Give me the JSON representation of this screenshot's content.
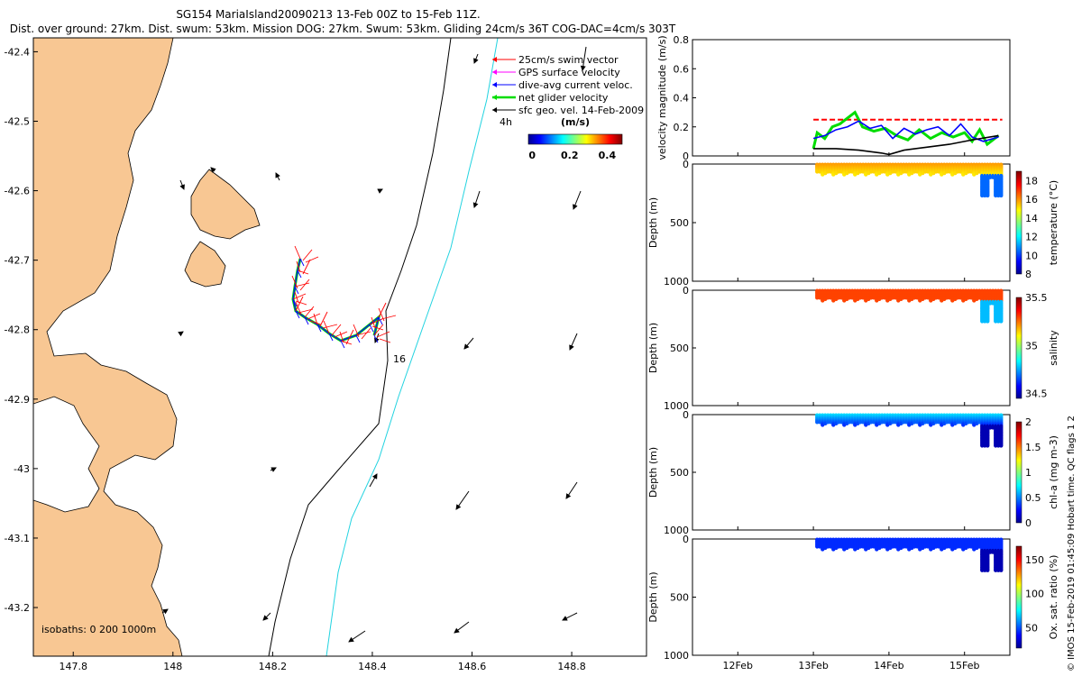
{
  "title_line1": "SG154 MariaIsland20090213 13-Feb 00Z to 15-Feb 11Z.",
  "title_line2": "Dist. over ground: 27km. Dist. swum: 53km. Mission DOG: 27km. Swum: 53km. Gliding 24cm/s 36T COG-DAC=4cm/s 303T",
  "colors": {
    "land": "#f8c793",
    "isobath200": "#000000",
    "isobath1000": "#22d3e0",
    "swim": "#ff0000",
    "gps": "#ff00ff",
    "dac": "#0000ff",
    "net": "#00dd00",
    "sfc": "#000000"
  },
  "map": {
    "x_ticks": [
      "147.8",
      "148",
      "148.2",
      "148.4",
      "148.6",
      "148.8"
    ],
    "y_ticks": [
      "-42.4",
      "-42.5",
      "-42.6",
      "-42.7",
      "-42.8",
      "-42.9",
      "-43",
      "-43.1",
      "-43.2"
    ],
    "xlim": [
      147.72,
      148.95
    ],
    "ylim": [
      -43.27,
      -42.38
    ],
    "legend": [
      "25cm/s swim vector",
      "GPS surface velocity",
      "dive-avg current veloc.",
      "net glider velocity",
      "sfc geo. vel. 14-Feb-2009"
    ],
    "colorbar_title": "(m/s)",
    "colorbar_ticks": [
      "0",
      "0.2",
      "0.4"
    ],
    "label_4h": "4h",
    "label_16": "16",
    "isobaths_label": "isobaths: 0   200   1000m"
  },
  "chart_data": [
    {
      "type": "line",
      "ylabel": "velocity magnitude (m/s)",
      "ylim": [
        0,
        0.8
      ],
      "y_ticks": [
        "0",
        "0.2",
        "0.4",
        "0.6",
        "0.8"
      ],
      "xlim": [
        11.4,
        15.6
      ],
      "series": [
        {
          "name": "target",
          "color": "#ff0000",
          "x": [
            13.0,
            15.5
          ],
          "y": [
            0.25,
            0.25
          ]
        },
        {
          "name": "net glider velocity",
          "color": "#00dd00",
          "x": [
            13.0,
            13.05,
            13.15,
            13.25,
            13.35,
            13.45,
            13.55,
            13.65,
            13.8,
            13.95,
            14.1,
            14.25,
            14.4,
            14.55,
            14.7,
            14.85,
            15.0,
            15.1,
            15.2,
            15.3,
            15.45
          ],
          "y": [
            0.05,
            0.16,
            0.12,
            0.2,
            0.22,
            0.26,
            0.3,
            0.2,
            0.17,
            0.19,
            0.14,
            0.11,
            0.18,
            0.12,
            0.16,
            0.13,
            0.16,
            0.1,
            0.18,
            0.08,
            0.14
          ]
        },
        {
          "name": "dive-avg current veloc.",
          "color": "#0000ff",
          "x": [
            13.0,
            13.15,
            13.3,
            13.45,
            13.6,
            13.75,
            13.9,
            14.05,
            14.2,
            14.35,
            14.5,
            14.65,
            14.8,
            14.95,
            15.1,
            15.25,
            15.45
          ],
          "y": [
            0.12,
            0.14,
            0.18,
            0.2,
            0.24,
            0.19,
            0.21,
            0.12,
            0.19,
            0.15,
            0.18,
            0.2,
            0.14,
            0.22,
            0.13,
            0.1,
            0.13
          ]
        },
        {
          "name": "sfc geo. vel.",
          "color": "#000000",
          "x": [
            13.0,
            13.3,
            13.6,
            13.9,
            14.0,
            14.2,
            14.5,
            14.8,
            15.1,
            15.45
          ],
          "y": [
            0.05,
            0.05,
            0.04,
            0.02,
            0.01,
            0.04,
            0.06,
            0.08,
            0.11,
            0.14
          ]
        }
      ]
    },
    {
      "type": "heatmap",
      "ylabel": "Depth (m)",
      "colorbar_label": "temperature (°C)",
      "colorbar_ticks": [
        "8",
        "10",
        "12",
        "14",
        "16",
        "18"
      ],
      "clim": [
        8,
        19
      ],
      "y_ticks": [
        "0",
        "500",
        "1000"
      ],
      "typical": 16
    },
    {
      "type": "heatmap",
      "ylabel": "Depth (m)",
      "colorbar_label": "salinity",
      "colorbar_ticks": [
        "34.5",
        "35",
        "35.5"
      ],
      "clim": [
        34.45,
        35.5
      ],
      "y_ticks": [
        "0",
        "500",
        "1000"
      ],
      "typical": 35.3
    },
    {
      "type": "heatmap",
      "ylabel": "Depth (m)",
      "colorbar_label": "chl-a (mg m-3)",
      "colorbar_ticks": [
        "0",
        "0.5",
        "1",
        "1.5",
        "2"
      ],
      "clim": [
        0,
        2
      ],
      "y_ticks": [
        "0",
        "500",
        "1000"
      ],
      "typical": 0.7
    },
    {
      "type": "heatmap",
      "ylabel": "Depth (m)",
      "colorbar_label": "Ox. sat. ratio (%)",
      "colorbar_ticks": [
        "50",
        "100",
        "150"
      ],
      "clim": [
        20,
        170
      ],
      "y_ticks": [
        "0",
        "500",
        "1000"
      ],
      "typical": 45
    }
  ],
  "time_ticks": [
    "12Feb",
    "13Feb",
    "14Feb",
    "15Feb"
  ],
  "time_tick_values": [
    12,
    13,
    14,
    15
  ],
  "footer": "© IMOS 15-Feb-2019 01:45:09 Hobart time. QC flags 1  2"
}
